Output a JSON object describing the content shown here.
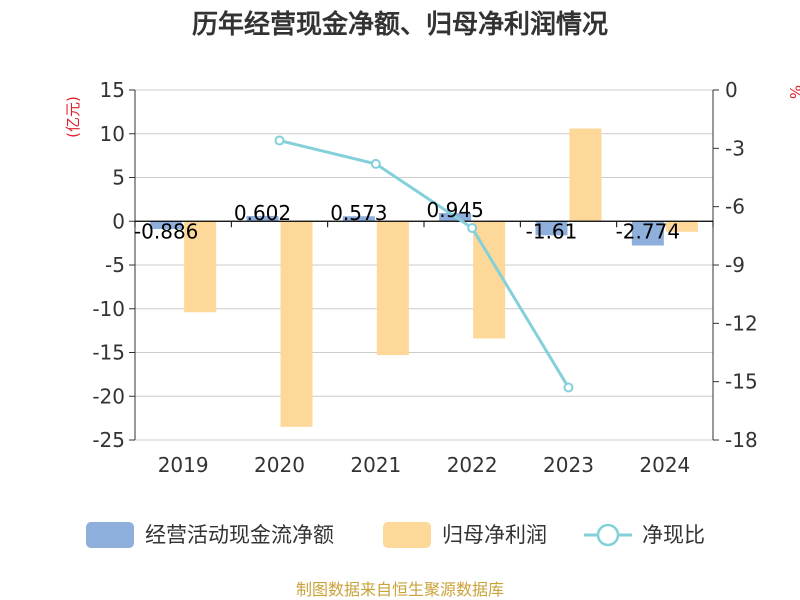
{
  "chart_data": {
    "type": "bar",
    "title": "历年经营现金净额、归母净利润情况",
    "ylabel_left": "(亿元)",
    "ylabel_right": "%",
    "categories": [
      "2019",
      "2020",
      "2021",
      "2022",
      "2023",
      "2024"
    ],
    "left_ticks": [
      15,
      10,
      5,
      0,
      -5,
      -10,
      -15,
      -20,
      -25
    ],
    "right_ticks": [
      0,
      -3,
      -6,
      -9,
      -12,
      -15,
      -18
    ],
    "ylim_left": [
      -25,
      15
    ],
    "ylim_right": [
      -18,
      0
    ],
    "series": [
      {
        "name": "经营活动现金流净额",
        "type": "bar",
        "axis": "left",
        "color": "#8eaedc",
        "values": [
          -0.886,
          0.602,
          0.573,
          0.945,
          -1.61,
          -2.774
        ],
        "labels": [
          "-0.886",
          "0.602",
          "0.573",
          "0.945",
          "-1.61",
          "-2.774"
        ]
      },
      {
        "name": "归母净利润",
        "type": "bar",
        "axis": "left",
        "color": "#fdd899",
        "values": [
          -10.4,
          -23.5,
          -15.3,
          -13.4,
          10.6,
          -1.2
        ]
      },
      {
        "name": "净现比",
        "type": "line",
        "axis": "right",
        "color": "#84d0da",
        "values": [
          null,
          -2.6,
          -3.8,
          -7.1,
          -15.3,
          null
        ]
      }
    ],
    "source": "制图数据来自恒生聚源数据库"
  }
}
